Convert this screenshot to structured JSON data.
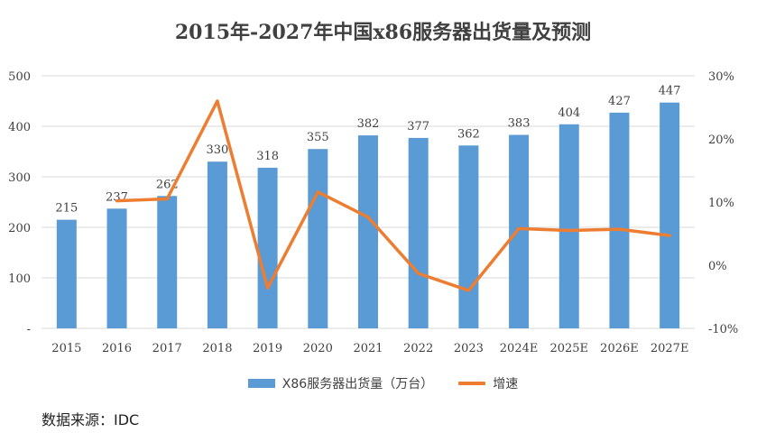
{
  "chart_data": {
    "type": "bar",
    "title": "2015年-2027年中国x86服务器出货量及预测",
    "categories": [
      "2015",
      "2016",
      "2017",
      "2018",
      "2019",
      "2020",
      "2021",
      "2022",
      "2023",
      "2024E",
      "2025E",
      "2026E",
      "2027E"
    ],
    "series": [
      {
        "name": "X86服务器出货量（万台）",
        "type": "bar",
        "axis": "left",
        "color": "#5b9bd5",
        "values": [
          215,
          237,
          262,
          330,
          318,
          355,
          382,
          377,
          362,
          383,
          404,
          427,
          447
        ]
      },
      {
        "name": "增速",
        "type": "line",
        "axis": "right",
        "color": "#ed7d31",
        "values": [
          null,
          10.2,
          10.5,
          26.0,
          -3.6,
          11.6,
          7.6,
          -1.3,
          -4.0,
          5.8,
          5.5,
          5.7,
          4.7
        ]
      }
    ],
    "left_axis": {
      "ylim": [
        0,
        500
      ],
      "ticks": [
        0,
        100,
        200,
        300,
        400,
        500
      ],
      "tick_labels": [
        "-",
        "100",
        "200",
        "300",
        "400",
        "500"
      ]
    },
    "right_axis": {
      "ylim": [
        -10,
        30
      ],
      "ticks": [
        -10,
        0,
        10,
        20,
        30
      ],
      "tick_labels": [
        "-10%",
        "0%",
        "10%",
        "20%",
        "30%"
      ]
    },
    "grid": true,
    "legend_position": "bottom"
  },
  "source": "数据来源：IDC"
}
